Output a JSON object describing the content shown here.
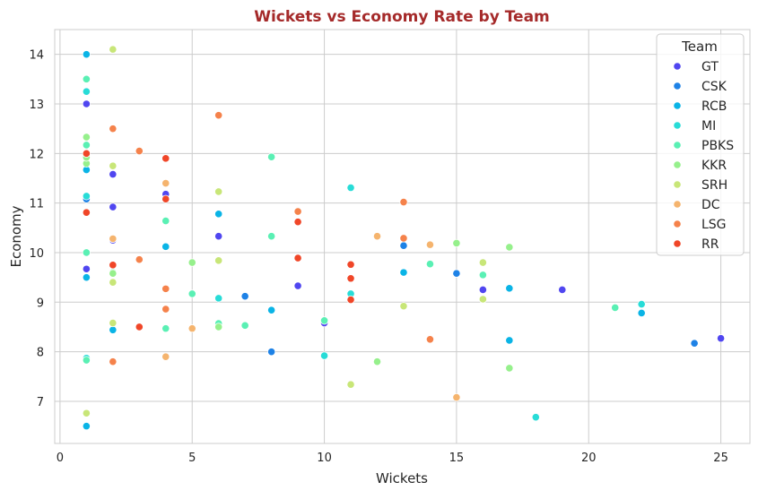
{
  "chart_data": {
    "type": "scatter",
    "title": "Wickets vs Economy Rate by Team",
    "title_color": "#a52a2a",
    "xlabel": "Wickets",
    "ylabel": "Economy",
    "xlim": [
      -0.2,
      26.1
    ],
    "ylim": [
      6.15,
      14.5
    ],
    "xticks": [
      0,
      5,
      10,
      15,
      20,
      25
    ],
    "yticks": [
      7,
      8,
      9,
      10,
      11,
      12,
      13,
      14
    ],
    "grid": true,
    "legend": {
      "title": "Team",
      "position": "top-right"
    },
    "series": [
      {
        "name": "GT",
        "color": "#5046f0",
        "points": [
          [
            1,
            13.0
          ],
          [
            1,
            9.67
          ],
          [
            2,
            11.58
          ],
          [
            2,
            10.92
          ],
          [
            2,
            10.25
          ],
          [
            4,
            11.18
          ],
          [
            6,
            10.33
          ],
          [
            9,
            9.33
          ],
          [
            10,
            8.58
          ],
          [
            16,
            9.25
          ],
          [
            19,
            9.25
          ],
          [
            25,
            8.27
          ]
        ]
      },
      {
        "name": "CSK",
        "color": "#1e82e6",
        "points": [
          [
            1,
            11.08
          ],
          [
            7,
            9.12
          ],
          [
            8,
            8.0
          ],
          [
            13,
            10.14
          ],
          [
            15,
            9.58
          ],
          [
            24,
            8.17
          ]
        ]
      },
      {
        "name": "RCB",
        "color": "#0ab4e6",
        "points": [
          [
            1,
            14.0
          ],
          [
            1,
            11.67
          ],
          [
            1,
            9.5
          ],
          [
            1,
            6.5
          ],
          [
            2,
            8.44
          ],
          [
            4,
            10.12
          ],
          [
            6,
            10.78
          ],
          [
            8,
            8.84
          ],
          [
            13,
            9.6
          ],
          [
            17,
            9.28
          ],
          [
            17,
            8.23
          ],
          [
            22,
            8.78
          ]
        ]
      },
      {
        "name": "MI",
        "color": "#28dcd7",
        "points": [
          [
            1,
            13.25
          ],
          [
            1,
            11.14
          ],
          [
            1,
            7.87
          ],
          [
            6,
            9.08
          ],
          [
            10,
            7.92
          ],
          [
            11,
            11.31
          ],
          [
            11,
            9.17
          ],
          [
            14,
            9.77
          ],
          [
            18,
            6.68
          ],
          [
            22,
            8.96
          ]
        ]
      },
      {
        "name": "PBKS",
        "color": "#5af0b4",
        "points": [
          [
            1,
            13.5
          ],
          [
            1,
            12.17
          ],
          [
            1,
            10.0
          ],
          [
            1,
            7.83
          ],
          [
            2,
            9.6
          ],
          [
            4,
            10.64
          ],
          [
            4,
            8.47
          ],
          [
            5,
            9.17
          ],
          [
            6,
            8.57
          ],
          [
            7,
            8.53
          ],
          [
            8,
            10.33
          ],
          [
            8,
            11.93
          ],
          [
            10,
            8.63
          ],
          [
            14,
            9.77
          ],
          [
            16,
            9.55
          ],
          [
            21,
            8.89
          ]
        ]
      },
      {
        "name": "KKR",
        "color": "#96f08c",
        "points": [
          [
            1,
            12.33
          ],
          [
            1,
            11.8
          ],
          [
            1,
            11.92
          ],
          [
            2,
            9.58
          ],
          [
            5,
            9.8
          ],
          [
            6,
            8.5
          ],
          [
            12,
            7.8
          ],
          [
            15,
            10.19
          ],
          [
            17,
            10.11
          ],
          [
            17,
            7.67
          ]
        ]
      },
      {
        "name": "SRH",
        "color": "#c8e678",
        "points": [
          [
            1,
            6.76
          ],
          [
            2,
            14.1
          ],
          [
            2,
            11.75
          ],
          [
            2,
            9.4
          ],
          [
            2,
            8.58
          ],
          [
            6,
            11.23
          ],
          [
            6,
            9.84
          ],
          [
            11,
            7.34
          ],
          [
            13,
            8.92
          ],
          [
            16,
            9.8
          ],
          [
            16,
            9.06
          ]
        ]
      },
      {
        "name": "DC",
        "color": "#f5b46e",
        "points": [
          [
            2,
            10.28
          ],
          [
            4,
            11.4
          ],
          [
            4,
            7.9
          ],
          [
            5,
            8.47
          ],
          [
            12,
            10.33
          ],
          [
            14,
            10.16
          ],
          [
            15,
            7.08
          ]
        ]
      },
      {
        "name": "LSG",
        "color": "#f5824b",
        "points": [
          [
            2,
            12.5
          ],
          [
            2,
            7.8
          ],
          [
            3,
            12.05
          ],
          [
            3,
            9.86
          ],
          [
            4,
            9.27
          ],
          [
            4,
            8.86
          ],
          [
            6,
            12.77
          ],
          [
            9,
            10.83
          ],
          [
            13,
            11.02
          ],
          [
            13,
            10.29
          ],
          [
            14,
            8.25
          ]
        ]
      },
      {
        "name": "RR",
        "color": "#f04628",
        "points": [
          [
            1,
            12.0
          ],
          [
            1,
            10.81
          ],
          [
            2,
            9.75
          ],
          [
            3,
            8.5
          ],
          [
            4,
            11.9
          ],
          [
            4,
            11.08
          ],
          [
            9,
            10.62
          ],
          [
            9,
            9.89
          ],
          [
            11,
            9.76
          ],
          [
            11,
            9.48
          ],
          [
            11,
            9.05
          ]
        ]
      }
    ]
  }
}
